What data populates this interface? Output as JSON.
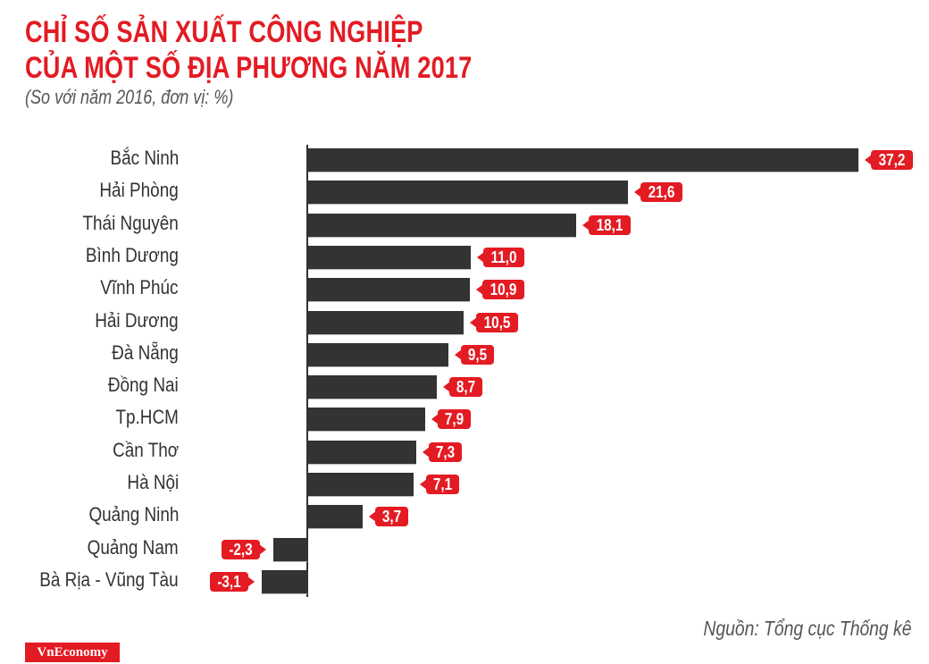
{
  "header": {
    "title_line1": "CHỈ SỐ SẢN XUẤT CÔNG NGHIỆP",
    "title_line2": "CỦA MỘT SỐ ĐỊA PHƯƠNG NĂM 2017",
    "subtitle": "(So với năm 2016, đơn vị: %)"
  },
  "footer": {
    "source": "Nguồn: Tổng cục Thống kê",
    "logo": "VnEconomy"
  },
  "colors": {
    "accent": "#e31b23",
    "bar": "#333333",
    "text": "#333333"
  },
  "chart_data": {
    "type": "bar",
    "orientation": "horizontal",
    "title": "CHỈ SỐ SẢN XUẤT CÔNG NGHIỆP CỦA MỘT SỐ ĐỊA PHƯƠNG NĂM 2017",
    "subtitle": "(So với năm 2016, đơn vị: %)",
    "xlabel": "",
    "ylabel": "",
    "grid": false,
    "legend": null,
    "categories": [
      "Bắc Ninh",
      "Hải Phòng",
      "Thái Nguyên",
      "Bình Dương",
      "Vĩnh Phúc",
      "Hải Dương",
      "Đà Nẵng",
      "Đồng Nai",
      "Tp.HCM",
      "Cần Thơ",
      "Hà Nội",
      "Quảng Ninh",
      "Quảng Nam",
      "Bà Rịa - Vũng Tàu"
    ],
    "values": [
      37.2,
      21.6,
      18.1,
      11.0,
      10.9,
      10.5,
      9.5,
      8.7,
      7.9,
      7.3,
      7.1,
      3.7,
      -2.3,
      -3.1
    ],
    "value_labels": [
      "37,2",
      "21,6",
      "18,1",
      "11,0",
      "10,9",
      "10,5",
      "9,5",
      "8,7",
      "7,9",
      "7,3",
      "7,1",
      "3,7",
      "-2,3",
      "-3,1"
    ],
    "xlim": [
      -3.1,
      37.2
    ],
    "source": "Nguồn: Tổng cục Thống kê"
  }
}
